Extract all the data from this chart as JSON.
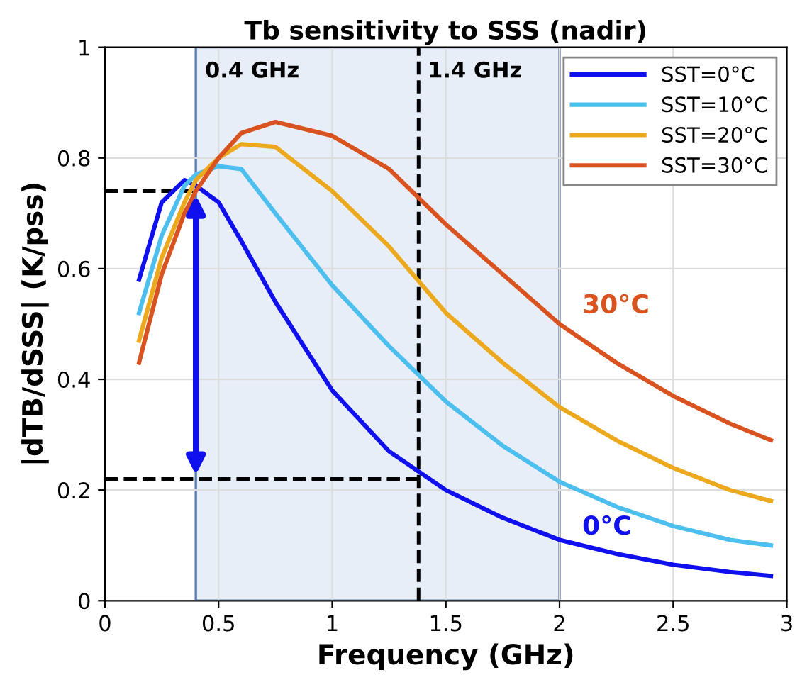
{
  "chart_data": {
    "type": "line",
    "title": "Tb sensitivity to SSS (nadir)",
    "xlabel": "Frequency (GHz)",
    "ylabel": "|dTB/dSSS| (K/pss)",
    "x": [
      0.15,
      0.25,
      0.35,
      0.4,
      0.5,
      0.6,
      0.75,
      1.0,
      1.25,
      1.5,
      1.75,
      2.0,
      2.25,
      2.5,
      2.75,
      2.93
    ],
    "series": [
      {
        "name": "SST=0°C",
        "color": "#1010ee",
        "values": [
          0.58,
          0.72,
          0.76,
          0.75,
          0.72,
          0.65,
          0.54,
          0.38,
          0.27,
          0.2,
          0.15,
          0.11,
          0.085,
          0.065,
          0.052,
          0.045
        ]
      },
      {
        "name": "SST=10°C",
        "color": "#4dbfee",
        "values": [
          0.52,
          0.66,
          0.75,
          0.77,
          0.785,
          0.78,
          0.7,
          0.57,
          0.46,
          0.36,
          0.28,
          0.215,
          0.17,
          0.135,
          0.11,
          0.1
        ]
      },
      {
        "name": "SST=20°C",
        "color": "#eda91e",
        "values": [
          0.47,
          0.62,
          0.72,
          0.76,
          0.8,
          0.825,
          0.82,
          0.74,
          0.64,
          0.52,
          0.43,
          0.35,
          0.29,
          0.24,
          0.2,
          0.18
        ]
      },
      {
        "name": "SST=30°C",
        "color": "#d95320",
        "values": [
          0.43,
          0.59,
          0.7,
          0.74,
          0.8,
          0.845,
          0.865,
          0.84,
          0.78,
          0.68,
          0.59,
          0.5,
          0.43,
          0.37,
          0.32,
          0.29
        ]
      }
    ],
    "xlim": [
      0,
      3
    ],
    "xticks": [
      0,
      0.5,
      1,
      1.5,
      2,
      2.5,
      3
    ],
    "ylim": [
      0,
      1
    ],
    "yticks": [
      0,
      0.2,
      0.4,
      0.6,
      0.8,
      1
    ],
    "bands": [
      {
        "axis": "x",
        "from": 0.4,
        "to": 2.0,
        "label": "0.4 GHz",
        "color": "#e8eef8"
      }
    ],
    "ref_lines": [
      {
        "axis": "x",
        "value": 1.38,
        "label": "1.4 GHz",
        "line_style": "dashed",
        "color": "#000000"
      },
      {
        "axis": "y",
        "value": 0.74,
        "label": null,
        "line_style": "dashed",
        "color": "#000000"
      },
      {
        "axis": "y",
        "value": 0.22,
        "label": null,
        "line_style": "dashed",
        "color": "#000000"
      }
    ],
    "annotations": [
      "30°C",
      "0°C"
    ],
    "grid": true,
    "legend": "top right",
    "marker": "none",
    "line_style": "solid"
  }
}
